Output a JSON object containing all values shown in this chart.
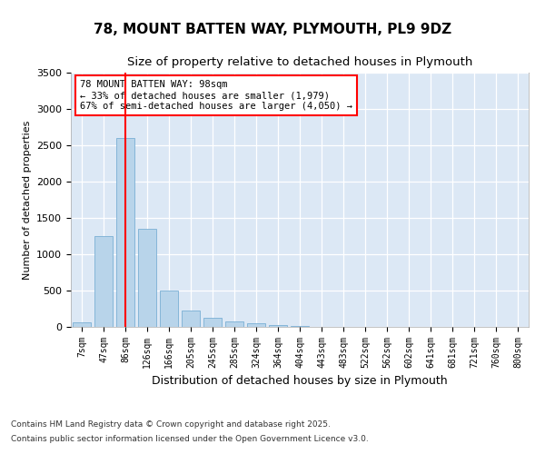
{
  "title1": "78, MOUNT BATTEN WAY, PLYMOUTH, PL9 9DZ",
  "title2": "Size of property relative to detached houses in Plymouth",
  "xlabel": "Distribution of detached houses by size in Plymouth",
  "ylabel": "Number of detached properties",
  "categories": [
    "7sqm",
    "47sqm",
    "86sqm",
    "126sqm",
    "166sqm",
    "205sqm",
    "245sqm",
    "285sqm",
    "324sqm",
    "364sqm",
    "404sqm",
    "443sqm",
    "483sqm",
    "522sqm",
    "562sqm",
    "602sqm",
    "641sqm",
    "681sqm",
    "721sqm",
    "760sqm",
    "800sqm"
  ],
  "values": [
    60,
    1250,
    2600,
    1350,
    500,
    220,
    130,
    70,
    50,
    20,
    10,
    5,
    3,
    2,
    1,
    1,
    0,
    0,
    0,
    0,
    0
  ],
  "bar_color": "#b8d4ea",
  "bar_edge_color": "#7aafd4",
  "red_line_x": 2,
  "annotation_title": "78 MOUNT BATTEN WAY: 98sqm",
  "annotation_line2": "← 33% of detached houses are smaller (1,979)",
  "annotation_line3": "67% of semi-detached houses are larger (4,050) →",
  "ylim": [
    0,
    3500
  ],
  "yticks": [
    0,
    500,
    1000,
    1500,
    2000,
    2500,
    3000,
    3500
  ],
  "plot_bg_color": "#dce8f5",
  "footer1": "Contains HM Land Registry data © Crown copyright and database right 2025.",
  "footer2": "Contains public sector information licensed under the Open Government Licence v3.0."
}
